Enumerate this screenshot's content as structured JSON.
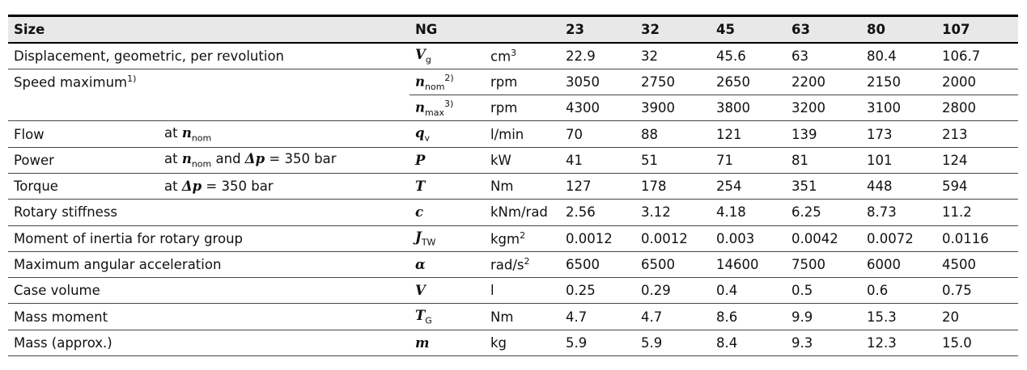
{
  "header": {
    "size": "Size",
    "ng": "NG",
    "sizes": [
      "23",
      "32",
      "45",
      "63",
      "80",
      "107"
    ]
  },
  "rows": [
    {
      "param": "Displacement, geometric, per revolution",
      "cond": "",
      "sym": "V",
      "sym_sub": "g",
      "sym_sup": "",
      "unit": "cm",
      "unit_sup": "3",
      "values": [
        "22.9",
        "32",
        "45.6",
        "63",
        "80.4",
        "106.7"
      ]
    },
    {
      "param": "Speed maximum",
      "param_sup": "1)",
      "cond": "",
      "sym": "n",
      "sym_sub": "nom",
      "sym_sup": "2)",
      "unit": "rpm",
      "unit_sup": "",
      "values": [
        "3050",
        "2750",
        "2650",
        "2200",
        "2150",
        "2000"
      ]
    },
    {
      "param": "",
      "cond": "",
      "sym": "n",
      "sym_sub": "max",
      "sym_sup": "3)",
      "unit": "rpm",
      "unit_sup": "",
      "values": [
        "4300",
        "3900",
        "3800",
        "3200",
        "3100",
        "2800"
      ]
    },
    {
      "param": "Flow",
      "cond_pre": "at ",
      "cond_sym": "n",
      "cond_sub": "nom",
      "cond_post": "",
      "sym": "q",
      "sym_sub": "v",
      "sym_sup": "",
      "unit": "l/min",
      "unit_sup": "",
      "values": [
        "70",
        "88",
        "121",
        "139",
        "173",
        "213"
      ]
    },
    {
      "param": "Power",
      "cond_pre": "at ",
      "cond_sym": "n",
      "cond_sub": "nom",
      "cond_post": " and Δp = 350 bar",
      "sym": "P",
      "sym_sub": "",
      "sym_sup": "",
      "unit": "kW",
      "unit_sup": "",
      "values": [
        "41",
        "51",
        "71",
        "81",
        "101",
        "124"
      ]
    },
    {
      "param": "Torque",
      "cond_pre": "at ",
      "cond_sym": "Δp",
      "cond_sub": "",
      "cond_post": " = 350 bar",
      "sym": "T",
      "sym_sub": "",
      "sym_sup": "",
      "unit": "Nm",
      "unit_sup": "",
      "values": [
        "127",
        "178",
        "254",
        "351",
        "448",
        "594"
      ]
    },
    {
      "param": "Rotary stiffness",
      "cond": "",
      "sym": "c",
      "sym_sub": "",
      "sym_sup": "",
      "unit": "kNm/rad",
      "unit_sup": "",
      "values": [
        "2.56",
        "3.12",
        "4.18",
        "6.25",
        "8.73",
        "11.2"
      ]
    },
    {
      "param": "Moment of inertia for rotary group",
      "cond": "",
      "sym": "J",
      "sym_sub": "TW",
      "sym_sup": "",
      "unit": "kgm",
      "unit_sup": "2",
      "values": [
        "0.0012",
        "0.0012",
        "0.003",
        "0.0042",
        "0.0072",
        "0.0116"
      ]
    },
    {
      "param": "Maximum angular acceleration",
      "cond": "",
      "sym": "α",
      "sym_sub": "",
      "sym_sup": "",
      "unit": "rad/s",
      "unit_sup": "2",
      "values": [
        "6500",
        "6500",
        "14600",
        "7500",
        "6000",
        "4500"
      ]
    },
    {
      "param": "Case volume",
      "cond": "",
      "sym": "V",
      "sym_sub": "",
      "sym_sup": "",
      "unit": "l",
      "unit_sup": "",
      "values": [
        "0.25",
        "0.29",
        "0.4",
        "0.5",
        "0.6",
        "0.75"
      ]
    },
    {
      "param": "Mass moment",
      "cond": "",
      "sym": "T",
      "sym_sub": "G",
      "sym_sup": "",
      "unit": "Nm",
      "unit_sup": "",
      "values": [
        "4.7",
        "4.7",
        "8.6",
        "9.9",
        "15.3",
        "20"
      ]
    },
    {
      "param": "Mass (approx.)",
      "cond": "",
      "sym": "m",
      "sym_sub": "",
      "sym_sup": "",
      "unit": "kg",
      "unit_sup": "",
      "values": [
        "5.9",
        "5.9",
        "8.4",
        "9.3",
        "12.3",
        "15.0"
      ]
    }
  ]
}
